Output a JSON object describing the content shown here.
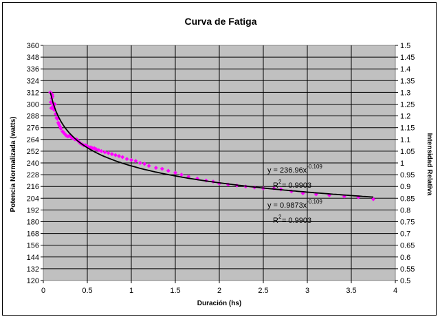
{
  "chart_data": {
    "type": "scatter",
    "title": "Curva de Fatiga",
    "xlabel": "Duración (hs)",
    "ylabel": "Potencia Normalizada (watts)",
    "y2label": "Intensidad Relativa",
    "xlim": [
      0,
      4
    ],
    "ylim": [
      120,
      360
    ],
    "y2lim": [
      0.5,
      1.5
    ],
    "x_ticks": [
      "0",
      "0.5",
      "1",
      "1.5",
      "2",
      "2.5",
      "3",
      "3.5",
      "4"
    ],
    "y_ticks": [
      "120",
      "132",
      "144",
      "156",
      "168",
      "180",
      "192",
      "204",
      "216",
      "228",
      "240",
      "252",
      "264",
      "276",
      "288",
      "300",
      "312",
      "324",
      "336",
      "348",
      "360"
    ],
    "y2_ticks": [
      "0.5",
      "0.55",
      "0.6",
      "0.65",
      "0.7",
      "0.75",
      "0.8",
      "0.85",
      "0.9",
      "0.95",
      "1",
      "1.05",
      "1.1",
      "1.15",
      "1.2",
      "1.25",
      "1.3",
      "1.35",
      "1.4",
      "1.45",
      "1.5"
    ],
    "grid": true,
    "plot_background": "#c0c0c0",
    "series": [
      {
        "color": "#ff00ff",
        "marker": "diamond",
        "x": [
          0.08,
          0.085,
          0.09,
          0.095,
          0.1,
          0.105,
          0.11,
          0.115,
          0.12,
          0.125,
          0.13,
          0.14,
          0.15,
          0.16,
          0.17,
          0.18,
          0.19,
          0.2,
          0.22,
          0.24,
          0.26,
          0.28,
          0.3,
          0.32,
          0.34,
          0.36,
          0.38,
          0.4,
          0.42,
          0.44,
          0.46,
          0.48,
          0.5,
          0.52,
          0.54,
          0.56,
          0.58,
          0.6,
          0.63,
          0.66,
          0.7,
          0.74,
          0.78,
          0.82,
          0.86,
          0.9,
          0.95,
          1.0,
          1.05,
          1.1,
          1.15,
          1.2,
          1.28,
          1.35,
          1.42,
          1.5,
          1.57,
          1.65,
          1.75,
          1.85,
          1.93,
          2.0,
          2.1,
          2.2,
          2.3,
          2.4,
          2.5,
          2.62,
          2.7,
          2.82,
          2.95,
          3.1,
          3.25,
          3.42,
          3.58,
          3.75
        ],
        "y": [
          312,
          302,
          296,
          306,
          310,
          308,
          300,
          298,
          295,
          294,
          300,
          290,
          286,
          285,
          281,
          279,
          277,
          275,
          272,
          270,
          268,
          267,
          268,
          266,
          265,
          264,
          264,
          262,
          260,
          259,
          258,
          258,
          257,
          256,
          256,
          255,
          255,
          254,
          253,
          252,
          251,
          250,
          249,
          248,
          247,
          246,
          244,
          243,
          242,
          240,
          239,
          237,
          235,
          234,
          232,
          230,
          228,
          226,
          224,
          222,
          221,
          219,
          218,
          217,
          216,
          215,
          214,
          214,
          213,
          211,
          209,
          208,
          207,
          206,
          205,
          203
        ]
      },
      {
        "color": "#000000",
        "type": "trendline",
        "equation": "y = 236.96x^-0.109",
        "a": 236.96,
        "b": -0.109,
        "x_range": [
          0.08,
          3.75
        ]
      }
    ],
    "annotations": [
      {
        "text": "y = 236.96x",
        "exponent": "-0.109",
        "r2_label": "R",
        "r2_exp": "2",
        "r2_value": " = 0.9903"
      },
      {
        "text": "y = 0.9873x",
        "exponent": "-0.109",
        "r2_label": "R",
        "r2_exp": "2",
        "r2_value": " = 0.9903"
      }
    ]
  }
}
